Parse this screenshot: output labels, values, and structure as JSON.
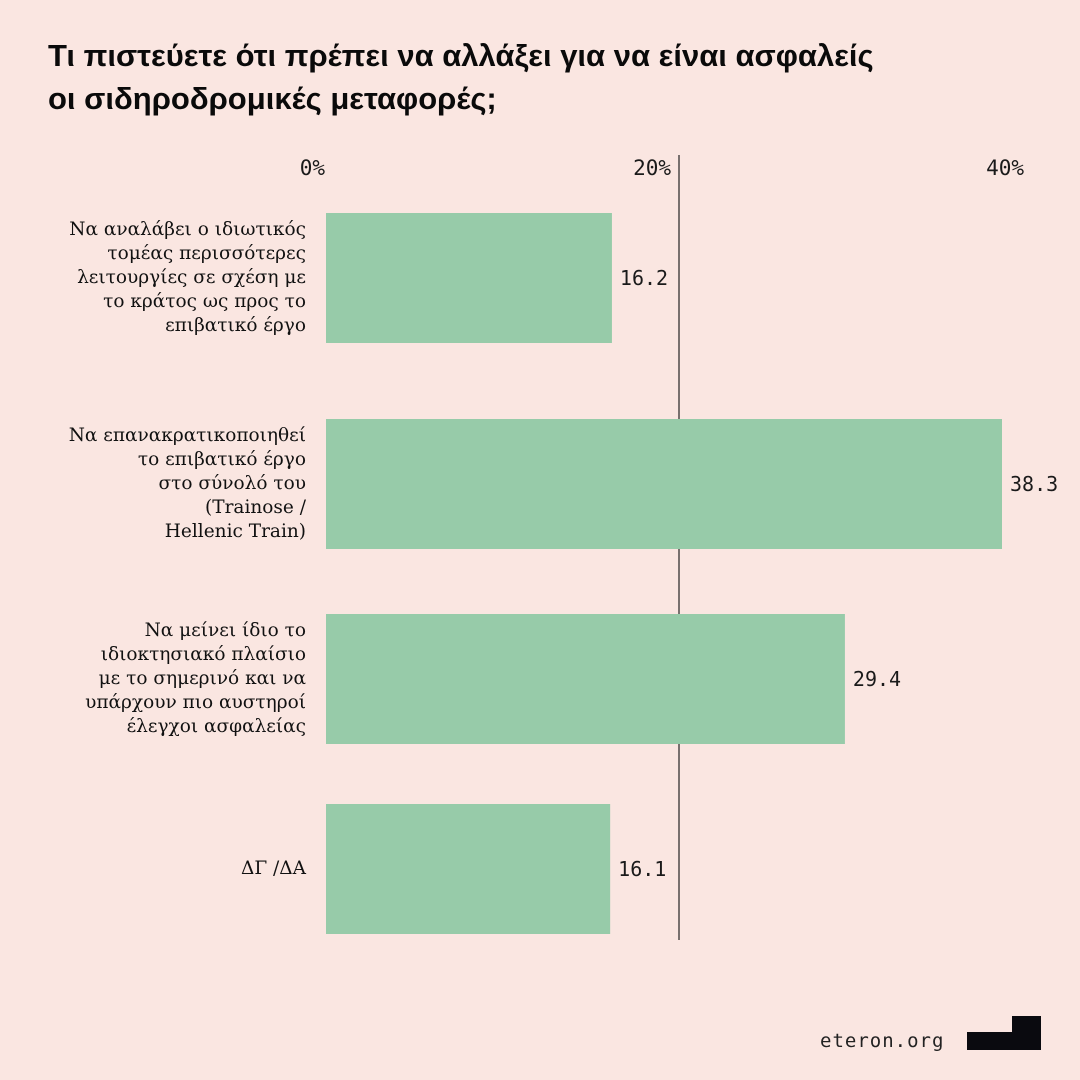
{
  "chart_data": {
    "type": "bar",
    "orientation": "horizontal",
    "title": "Τι πιστεύετε ότι πρέπει να αλλάξει για να είναι ασφαλείς\nοι σιδηροδρομικές μεταφορές;",
    "categories": [
      "Να αναλάβει ο ιδιωτικός\nτομέας περισσότερες\nλειτουργίες σε σχέση με\nτο κράτος ως προς το\nεπιβατικό έργο",
      "Να επανακρατικοποιηθεί\nτο επιβατικό έργο\nστο σύνολό του\n(Trainose /\nHellenic Train)",
      "Να μείνει ίδιο το\nιδιοκτησιακό πλαίσιο\nμε το σημερινό και να\nυπάρχουν πιο αυστηροί\nέλεγχοι ασφαλείας",
      "ΔΓ /ΔΑ"
    ],
    "values": [
      16.2,
      38.3,
      29.4,
      16.1
    ],
    "value_labels": [
      "16.2",
      "38.3",
      "29.4",
      "16.1"
    ],
    "xlim": [
      0,
      40
    ],
    "x_ticks": [
      0,
      20,
      40
    ],
    "x_tick_labels": [
      "0%",
      "20%",
      "40%"
    ],
    "x_axis_position": "top",
    "reference_line": 20,
    "grid": false,
    "colors": {
      "bar": "#97cba9",
      "background": "#fae6e1",
      "text": "#111111"
    }
  },
  "footer": {
    "source": "eteron.org",
    "logo": "eteron"
  }
}
